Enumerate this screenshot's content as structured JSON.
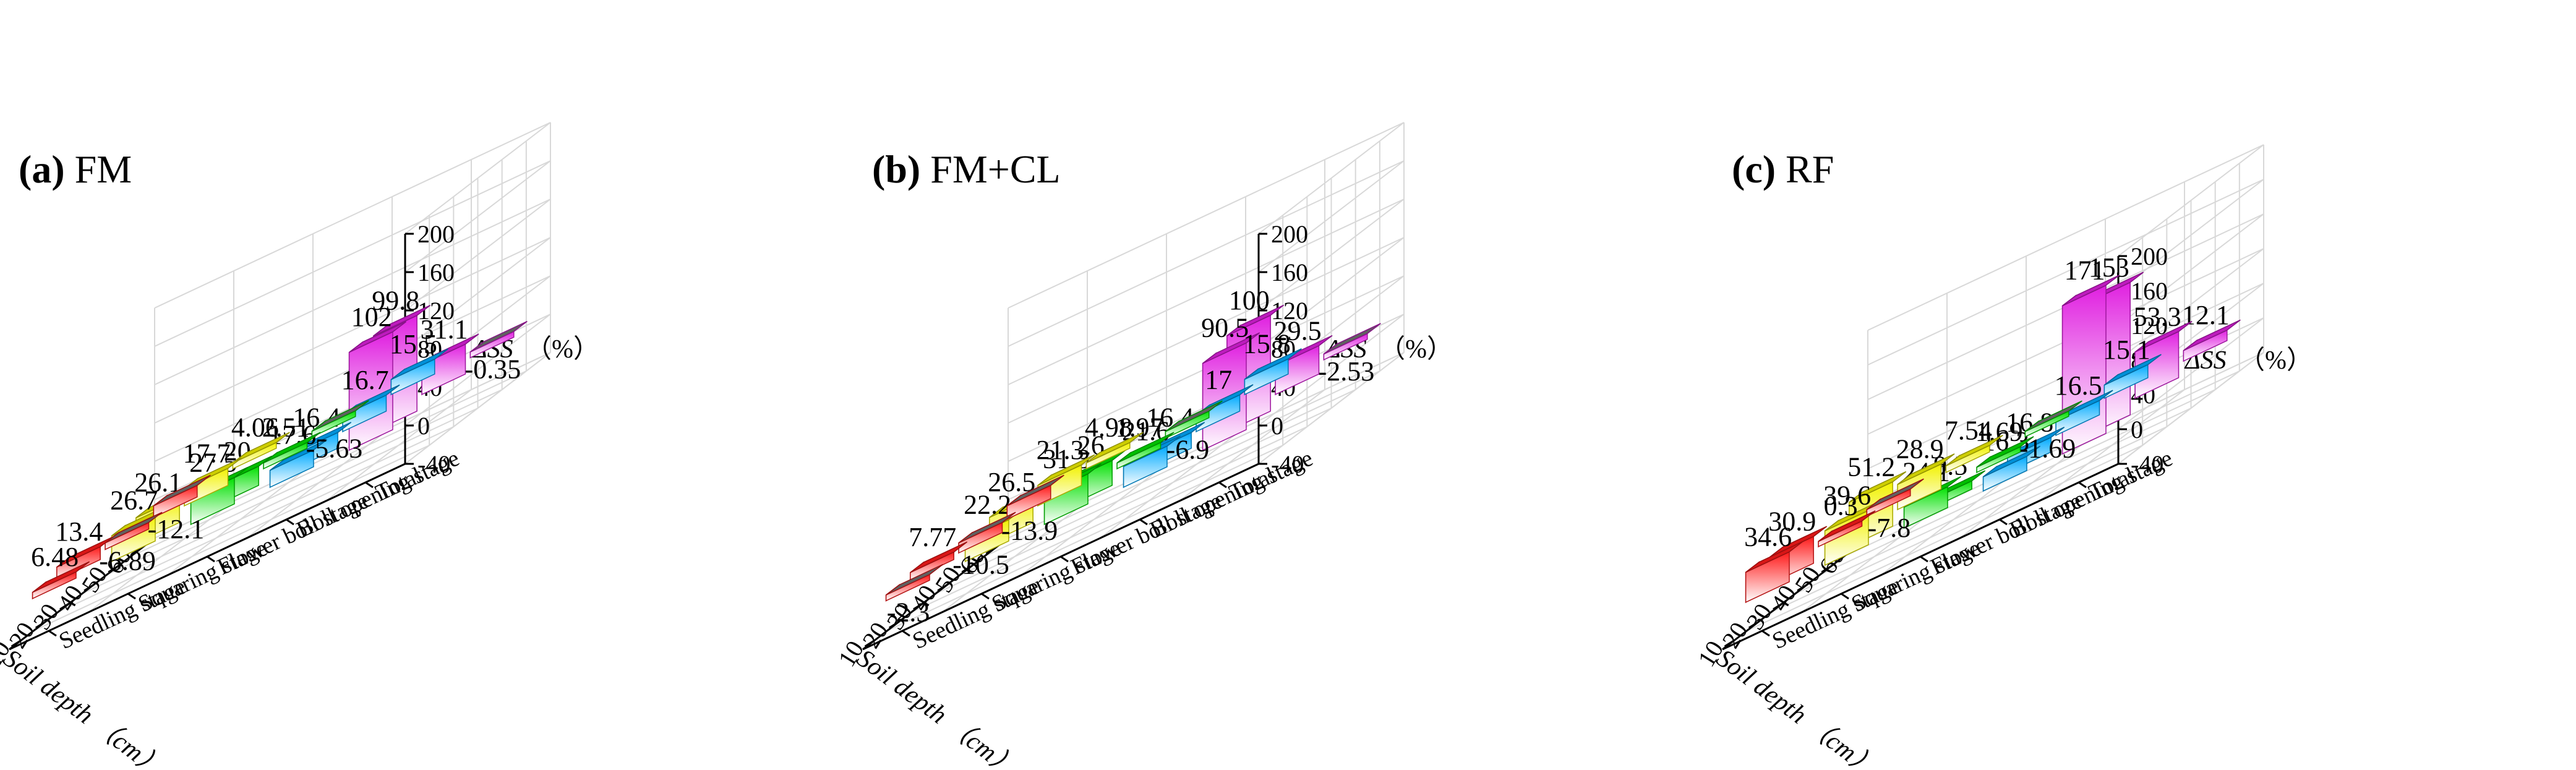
{
  "chart_data": [
    {
      "type": "bar3d",
      "panel_id": "(a)",
      "panel_title": "FM",
      "z_label": "ΔSS",
      "z_unit": "（%）",
      "z_ticks": [
        "-40",
        "0",
        "40",
        "80",
        "120",
        "160",
        "200"
      ],
      "z_range": [
        -40,
        200
      ],
      "x_label": "Soil depth （cm）",
      "x_ticks": [
        "60",
        "50",
        "40",
        "30",
        "20",
        "10"
      ],
      "y_categories": [
        "Seedling stage",
        "Squaring stage",
        "Flower boll stage",
        "Boll opening stage",
        "Total"
      ],
      "bars": [
        {
          "stage": "Seedling stage",
          "depth": "60",
          "value": -12.1,
          "label": "-12.1"
        },
        {
          "stage": "Seedling stage",
          "depth": "40",
          "value": -6.89,
          "label": "-6.89"
        },
        {
          "stage": "Seedling stage",
          "depth": "20",
          "value": 13.4,
          "label": "13.4"
        },
        {
          "stage": "Seedling stage",
          "depth": "10",
          "value": 6.48,
          "label": "6.48"
        },
        {
          "stage": "Squaring stage",
          "depth": "60",
          "value": 4.06,
          "label": "4.06"
        },
        {
          "stage": "Squaring stage",
          "depth": "40",
          "value": 17.7,
          "label": "17.7"
        },
        {
          "stage": "Squaring stage",
          "depth": "20",
          "value": 26.1,
          "label": "26.1"
        },
        {
          "stage": "Squaring stage",
          "depth": "10",
          "value": 26.7,
          "label": "26.7"
        },
        {
          "stage": "Flower boll stage",
          "depth": "60",
          "value": -5.63,
          "label": "-5.63"
        },
        {
          "stage": "Flower boll stage",
          "depth": "40",
          "value": 2.51,
          "label": "2.51"
        },
        {
          "stage": "Flower boll stage",
          "depth": "20",
          "value": 20,
          "label": "20"
        },
        {
          "stage": "Flower boll stage",
          "depth": "10",
          "value": 27.5,
          "label": "27.5"
        },
        {
          "stage": "Boll opening stage",
          "depth": "60",
          "value": 15.5,
          "label": "15.5"
        },
        {
          "stage": "Boll opening stage",
          "depth": "40",
          "value": 16.7,
          "label": "16.7"
        },
        {
          "stage": "Boll opening stage",
          "depth": "20",
          "value": 16.4,
          "label": "16.4"
        },
        {
          "stage": "Boll opening stage",
          "depth": "10",
          "value": 17.6,
          "label": "17.6"
        },
        {
          "stage": "Total",
          "depth": "60",
          "value": -0.35,
          "label": "-0.35"
        },
        {
          "stage": "Total",
          "depth": "40",
          "value": 31.1,
          "label": "31.1"
        },
        {
          "stage": "Total",
          "depth": "20",
          "value": 99.8,
          "label": "99.8"
        },
        {
          "stage": "Total",
          "depth": "10",
          "value": 102,
          "label": "102"
        }
      ]
    },
    {
      "type": "bar3d",
      "panel_id": "(b)",
      "panel_title": "FM+CL",
      "z_label": "ΔSS",
      "z_unit": "（%）",
      "z_ticks": [
        "-40",
        "0",
        "40",
        "80",
        "120",
        "160",
        "200"
      ],
      "z_range": [
        -40,
        200
      ],
      "x_label": "Soil depth （cm）",
      "x_ticks": [
        "60",
        "50",
        "40",
        "30",
        "20",
        "10"
      ],
      "y_categories": [
        "Seedling stage",
        "Squaring stage",
        "Flower boll stage",
        "Boll opening stage",
        "Total"
      ],
      "bars": [
        {
          "stage": "Seedling stage",
          "depth": "60",
          "value": -13.9,
          "label": "-13.9"
        },
        {
          "stage": "Seedling stage",
          "depth": "40",
          "value": -10.5,
          "label": "-10.5"
        },
        {
          "stage": "Seedling stage",
          "depth": "20",
          "value": 7.77,
          "label": "7.77"
        },
        {
          "stage": "Seedling stage",
          "depth": "10",
          "value": -2.3,
          "label": "-2.3"
        },
        {
          "stage": "Squaring stage",
          "depth": "60",
          "value": 4.98,
          "label": "4.98"
        },
        {
          "stage": "Squaring stage",
          "depth": "40",
          "value": 21.3,
          "label": "21.3"
        },
        {
          "stage": "Squaring stage",
          "depth": "20",
          "value": 26.5,
          "label": "26.5"
        },
        {
          "stage": "Squaring stage",
          "depth": "10",
          "value": 22.2,
          "label": "22.2"
        },
        {
          "stage": "Flower boll stage",
          "depth": "60",
          "value": -6.9,
          "label": "-6.9"
        },
        {
          "stage": "Flower boll stage",
          "depth": "40",
          "value": 1.97,
          "label": "1.97"
        },
        {
          "stage": "Flower boll stage",
          "depth": "20",
          "value": 26,
          "label": "26"
        },
        {
          "stage": "Flower boll stage",
          "depth": "10",
          "value": 31.3,
          "label": "31.3"
        },
        {
          "stage": "Boll opening stage",
          "depth": "60",
          "value": 15.8,
          "label": "15.8"
        },
        {
          "stage": "Boll opening stage",
          "depth": "40",
          "value": 17,
          "label": "17"
        },
        {
          "stage": "Boll opening stage",
          "depth": "20",
          "value": 16.4,
          "label": "16.4"
        },
        {
          "stage": "Boll opening stage",
          "depth": "10",
          "value": 21.6,
          "label": "21.6"
        },
        {
          "stage": "Total",
          "depth": "60",
          "value": -2.53,
          "label": "-2.53"
        },
        {
          "stage": "Total",
          "depth": "40",
          "value": 29.5,
          "label": "29.5"
        },
        {
          "stage": "Total",
          "depth": "20",
          "value": 100,
          "label": "100"
        },
        {
          "stage": "Total",
          "depth": "10",
          "value": 90.5,
          "label": "90.5"
        }
      ]
    },
    {
      "type": "bar3d",
      "panel_id": "(c)",
      "panel_title": "RF",
      "z_label": "ΔSS",
      "z_unit": "（%）",
      "z_ticks": [
        "-40",
        "0",
        "40",
        "80",
        "120",
        "160",
        "200"
      ],
      "z_range": [
        -40,
        200
      ],
      "x_label": "Soil depth （cm）",
      "x_ticks": [
        "60",
        "50",
        "40",
        "30",
        "20",
        "10"
      ],
      "y_categories": [
        "Seedling stage",
        "Squaring stage",
        "Flower boll stage",
        "Boll opening stage",
        "Total"
      ],
      "bars": [
        {
          "stage": "Seedling stage",
          "depth": "60",
          "value": -7.8,
          "label": "-7.8"
        },
        {
          "stage": "Seedling stage",
          "depth": "40",
          "value": 0.3,
          "label": "0.3"
        },
        {
          "stage": "Seedling stage",
          "depth": "20",
          "value": 30.9,
          "label": "30.9"
        },
        {
          "stage": "Seedling stage",
          "depth": "10",
          "value": 34.6,
          "label": "34.6"
        },
        {
          "stage": "Squaring stage",
          "depth": "60",
          "value": 7.54,
          "label": "7.54"
        },
        {
          "stage": "Squaring stage",
          "depth": "40",
          "value": 28.9,
          "label": "28.9"
        },
        {
          "stage": "Squaring stage",
          "depth": "20",
          "value": 51.2,
          "label": "51.2"
        },
        {
          "stage": "Squaring stage",
          "depth": "10",
          "value": 39.6,
          "label": "39.6"
        },
        {
          "stage": "Flower boll stage",
          "depth": "60",
          "value": -1.69,
          "label": "-1.69"
        },
        {
          "stage": "Flower boll stage",
          "depth": "40",
          "value": 1.69,
          "label": "1.69"
        },
        {
          "stage": "Flower boll stage",
          "depth": "20",
          "value": 9.5,
          "label": "9.5"
        },
        {
          "stage": "Flower boll stage",
          "depth": "10",
          "value": 24.1,
          "label": "24.1"
        },
        {
          "stage": "Boll opening stage",
          "depth": "60",
          "value": 15.1,
          "label": "15.1"
        },
        {
          "stage": "Boll opening stage",
          "depth": "40",
          "value": 16.5,
          "label": "16.5"
        },
        {
          "stage": "Boll opening stage",
          "depth": "20",
          "value": 16.8,
          "label": "16.8"
        },
        {
          "stage": "Boll opening stage",
          "depth": "10",
          "value": 16.3,
          "label": "16.3"
        },
        {
          "stage": "Total",
          "depth": "60",
          "value": 12.1,
          "label": "12.1"
        },
        {
          "stage": "Total",
          "depth": "40",
          "value": 53.3,
          "label": "53.3"
        },
        {
          "stage": "Total",
          "depth": "20",
          "value": 153,
          "label": "153"
        },
        {
          "stage": "Total",
          "depth": "10",
          "value": 171,
          "label": "171"
        }
      ]
    }
  ],
  "colors": {
    "Seedling stage": "#ff1a1a",
    "Squaring stage": "#f2f200",
    "Flower boll stage": "#00e000",
    "Boll opening stage": "#00aaff",
    "Total": "#e020e0",
    "negative": "#606060",
    "grid": "#d8d8d8",
    "frame": "#000000"
  }
}
